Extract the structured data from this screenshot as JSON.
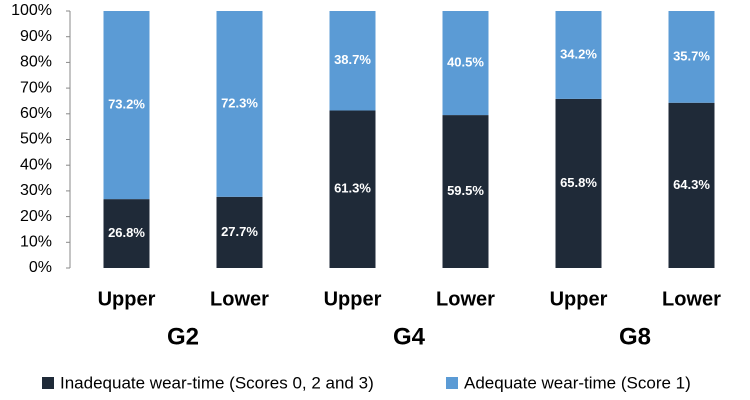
{
  "chart_data": {
    "type": "stacked-bar",
    "categories": [
      "Upper",
      "Lower",
      "Upper",
      "Lower",
      "Upper",
      "Lower"
    ],
    "groups": [
      "G2",
      "G4",
      "G8"
    ],
    "series": [
      {
        "name": "Inadequate wear-time (Scores 0, 2 and 3)",
        "color": "#1f2a38",
        "values": [
          26.8,
          27.7,
          61.3,
          59.5,
          65.8,
          64.3
        ],
        "value_labels": [
          "26.8%",
          "27.7%",
          "61.3%",
          "59.5%",
          "65.8%",
          "64.3%"
        ]
      },
      {
        "name": "Adequate wear-time (Score 1)",
        "color": "#5b9bd5",
        "values": [
          73.2,
          72.3,
          38.7,
          40.5,
          34.2,
          35.7
        ],
        "value_labels": [
          "73.2%",
          "72.3%",
          "38.7%",
          "40.5%",
          "34.2%",
          "35.7%"
        ]
      }
    ],
    "ylim": [
      0,
      100
    ],
    "yticks": [
      {
        "value": 0,
        "label": "0%"
      },
      {
        "value": 10,
        "label": "10%"
      },
      {
        "value": 20,
        "label": "20%"
      },
      {
        "value": 30,
        "label": "30%"
      },
      {
        "value": 40,
        "label": "40%"
      },
      {
        "value": 50,
        "label": "50%"
      },
      {
        "value": 60,
        "label": "60%"
      },
      {
        "value": 70,
        "label": "70%"
      },
      {
        "value": 80,
        "label": "80%"
      },
      {
        "value": 90,
        "label": "90%"
      },
      {
        "value": 100,
        "label": "100%"
      }
    ],
    "grid": false
  }
}
